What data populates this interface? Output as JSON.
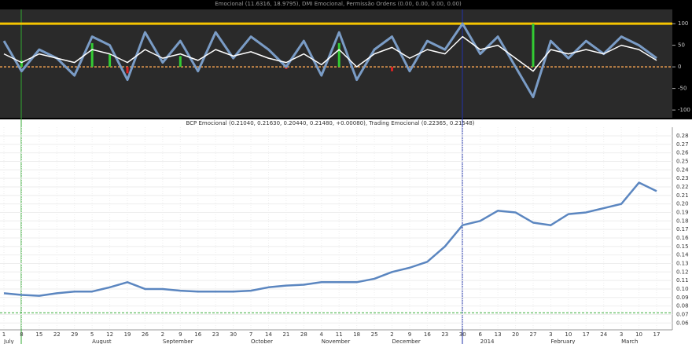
{
  "charts": [
    {
      "type": "indicator",
      "title": "Emocional (11.6316, 18.9795), DMI Emocional, Permissão Ordens (0.00, 0.00, 0.00, 0.00)",
      "ylim": [
        -118,
        133
      ],
      "yticks": [
        100,
        50,
        0,
        -50,
        -100
      ],
      "levels": [
        {
          "value": 100,
          "color": "#f5c400"
        },
        {
          "value": 0,
          "color": "#f0a050"
        }
      ],
      "series": [
        {
          "color": "#7a9cc6",
          "width": 3,
          "values": [
            60,
            -10,
            40,
            20,
            -20,
            70,
            50,
            -30,
            80,
            10,
            60,
            -10,
            80,
            20,
            70,
            40,
            0,
            60,
            -20,
            80,
            -30,
            40,
            70,
            -10,
            60,
            40,
            100,
            30,
            70,
            0,
            -70,
            60,
            20,
            60,
            30,
            70,
            50,
            20
          ]
        },
        {
          "color": "#ffffff",
          "width": 1.5,
          "values": [
            30,
            10,
            30,
            20,
            10,
            40,
            30,
            10,
            40,
            20,
            30,
            15,
            40,
            25,
            35,
            20,
            10,
            30,
            5,
            40,
            0,
            30,
            45,
            20,
            40,
            30,
            70,
            40,
            50,
            20,
            -10,
            40,
            30,
            40,
            30,
            50,
            40,
            15
          ]
        }
      ],
      "histogram": {
        "positive_color": "#33cc33",
        "negative_color": "#dd2222",
        "values": [
          0,
          15,
          0,
          0,
          0,
          55,
          30,
          -15,
          0,
          0,
          25,
          0,
          0,
          0,
          0,
          0,
          -5,
          0,
          0,
          55,
          0,
          0,
          -10,
          0,
          0,
          0,
          0,
          0,
          0,
          0,
          100,
          0,
          0,
          0,
          0,
          0,
          0,
          0
        ]
      }
    },
    {
      "type": "line",
      "title": "BCP Emocional (0.21040, 0.21630, 0.20440, 0.21480, +0.00080), Trading Emocional (0.22365, 0.21548)",
      "categories": [
        "1",
        "8",
        "15",
        "22",
        "29",
        "5",
        "12",
        "19",
        "26",
        "2",
        "9",
        "16",
        "23",
        "30",
        "7",
        "14",
        "21",
        "28",
        "4",
        "11",
        "18",
        "25",
        "2",
        "9",
        "16",
        "23",
        "30",
        "6",
        "13",
        "20",
        "27",
        "3",
        "10",
        "17",
        "24",
        "3",
        "10",
        "17"
      ],
      "months": [
        "July",
        null,
        null,
        null,
        null,
        "August",
        null,
        null,
        null,
        "September",
        null,
        null,
        null,
        null,
        "October",
        null,
        null,
        null,
        "November",
        null,
        null,
        null,
        "December",
        null,
        null,
        null,
        null,
        "2014",
        null,
        null,
        null,
        "February",
        null,
        null,
        null,
        "March",
        null,
        null
      ],
      "color": "#5b86c0",
      "values": [
        0.095,
        0.093,
        0.092,
        0.095,
        0.097,
        0.097,
        0.102,
        0.108,
        0.1,
        0.1,
        0.098,
        0.097,
        0.097,
        0.097,
        0.098,
        0.102,
        0.104,
        0.105,
        0.108,
        0.108,
        0.108,
        0.112,
        0.12,
        0.125,
        0.132,
        0.15,
        0.175,
        0.18,
        0.192,
        0.19,
        0.178,
        0.175,
        0.188,
        0.19,
        0.195,
        0.2,
        0.225,
        0.215
      ],
      "reference_line": {
        "value": 0.072,
        "color": "#33aa33"
      },
      "ylim": [
        0.0575,
        0.2855
      ],
      "yticks": [
        0.06,
        0.07,
        0.08,
        0.09,
        {
          "value": 0.1,
          "label": "0.10"
        },
        0.11,
        0.12,
        0.13,
        0.14,
        0.15,
        0.16,
        0.17,
        0.18,
        0.19,
        {
          "value": 0.2,
          "label": "0.20"
        },
        0.21,
        0.22,
        0.23,
        0.24,
        0.25,
        0.26,
        0.27,
        0.28
      ],
      "grid": true
    }
  ]
}
